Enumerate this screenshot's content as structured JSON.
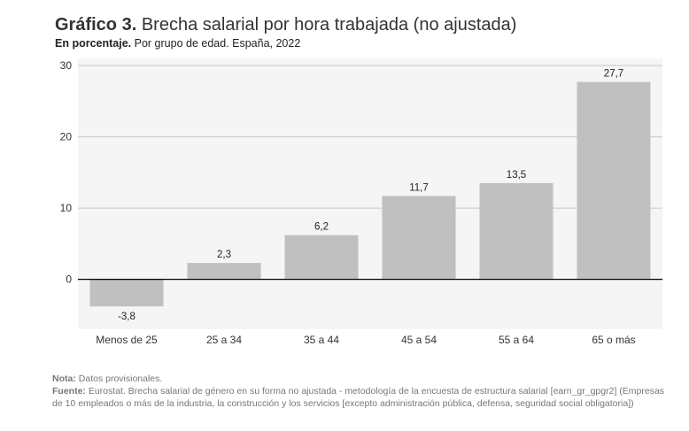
{
  "header": {
    "title_bold": "Gráfico 3.",
    "title_rest": "Brecha salarial por hora trabajada (no ajustada)",
    "subtitle_bold": "En porcentaje.",
    "subtitle_rest": "Por grupo de edad. España, 2022"
  },
  "chart_data": {
    "type": "bar",
    "categories": [
      "Menos de 25",
      "25 a 34",
      "35 a 44",
      "45 a 54",
      "55 a 64",
      "65 o más"
    ],
    "values": [
      -3.8,
      2.3,
      6.2,
      11.7,
      13.5,
      27.7
    ],
    "value_labels": [
      "-3,8",
      "2,3",
      "6,2",
      "11,7",
      "13,5",
      "27,7"
    ],
    "yticks": [
      0,
      10,
      20,
      30
    ],
    "ylim": [
      -7,
      31
    ],
    "grid": true,
    "bar_color": "#c0c0c0",
    "plot_background": "#f5f5f5"
  },
  "footer": {
    "note_label": "Nota:",
    "note_text": "Datos provisionales.",
    "source_label": "Fuente:",
    "source_text": "Eurostat. Brecha salarial de género en su forma no ajustada - metodología de la encuesta de estructura salarial [earn_gr_gpgr2] (Empresas de 10 empleados o más de la industria, la construcción y los servicios [excepto administración pública, defensa, seguridad social obligatoria])"
  }
}
